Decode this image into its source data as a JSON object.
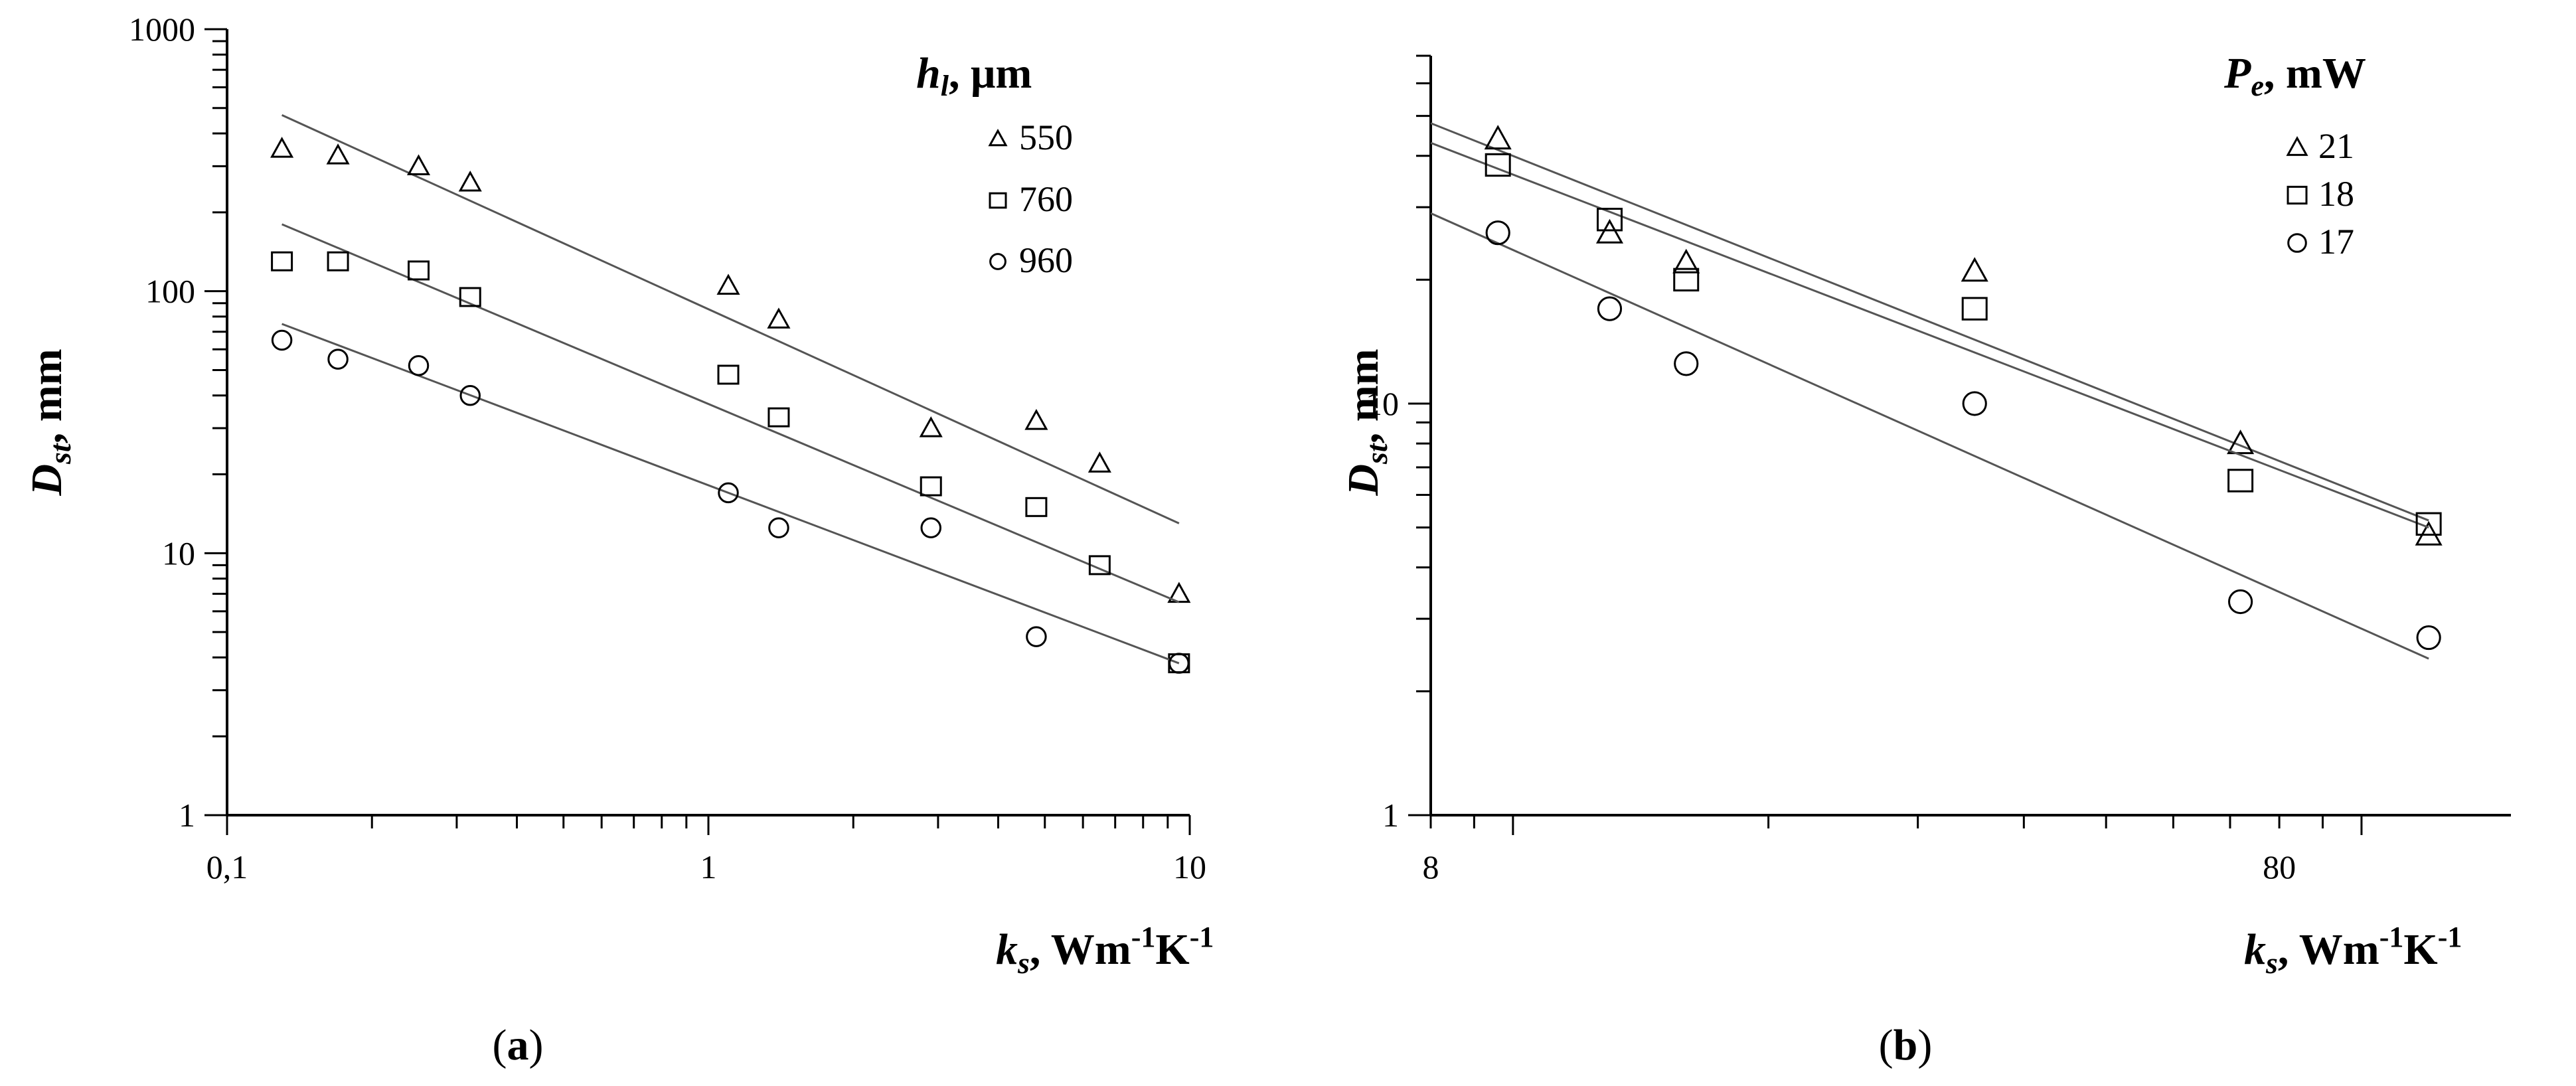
{
  "chart_data": [
    {
      "type": "scatter",
      "panel_label": "a",
      "xscale": "log",
      "yscale": "log",
      "xlim": [
        0.1,
        10
      ],
      "ylim": [
        1,
        1000
      ],
      "x_tick_labels": [
        {
          "value": 0.1,
          "label": "0,1"
        },
        {
          "value": 1,
          "label": "1"
        },
        {
          "value": 10,
          "label": "10"
        }
      ],
      "y_tick_labels": [
        {
          "value": 1,
          "label": "1"
        },
        {
          "value": 10,
          "label": "10"
        },
        {
          "value": 100,
          "label": "100"
        },
        {
          "value": 1000,
          "label": "1000"
        }
      ],
      "xlabel": {
        "main": "k",
        "sub": "s",
        "rest": ", Wm",
        "sup1": "-1",
        "mid": "K",
        "sup2": "-1"
      },
      "ylabel": {
        "main": "D",
        "sub": "st",
        "rest": ", mm"
      },
      "legend": {
        "title": {
          "main": "h",
          "sub": "l",
          "rest": ", μm"
        },
        "placement": "top-right"
      },
      "series": [
        {
          "name": "550",
          "marker": "triangle",
          "x": [
            0.13,
            0.17,
            0.25,
            0.32,
            1.1,
            1.4,
            2.9,
            4.8,
            6.5,
            9.5
          ],
          "y": [
            350,
            330,
            300,
            260,
            105,
            78,
            30,
            32,
            22,
            7
          ],
          "fit_x": [
            0.13,
            9.5
          ],
          "fit_y": [
            470,
            13
          ]
        },
        {
          "name": "760",
          "marker": "square",
          "x": [
            0.13,
            0.17,
            0.25,
            0.32,
            1.1,
            1.4,
            2.9,
            4.8,
            6.5,
            9.5
          ],
          "y": [
            130,
            130,
            120,
            95,
            48,
            33,
            18,
            15,
            9,
            3.8
          ],
          "fit_x": [
            0.13,
            9.5
          ],
          "fit_y": [
            180,
            6.5
          ]
        },
        {
          "name": "960",
          "marker": "circle",
          "x": [
            0.13,
            0.17,
            0.25,
            0.32,
            1.1,
            1.4,
            2.9,
            4.8,
            9.5
          ],
          "y": [
            65,
            55,
            52,
            40,
            17,
            12.5,
            12.5,
            4.8,
            3.8
          ],
          "fit_x": [
            0.13,
            9.5
          ],
          "fit_y": [
            75,
            3.8
          ]
        }
      ]
    },
    {
      "type": "scatter",
      "panel_label": "b",
      "xscale": "log",
      "yscale": "log",
      "xlim": [
        8,
        150
      ],
      "ylim": [
        1,
        70
      ],
      "x_tick_labels": [
        {
          "value": 8,
          "label": "8"
        },
        {
          "value": 80,
          "label": "80"
        }
      ],
      "y_tick_labels": [
        {
          "value": 1,
          "label": "1"
        },
        {
          "value": 10,
          "label": "10"
        }
      ],
      "xlabel": {
        "main": "k",
        "sub": "s",
        "rest": ", Wm",
        "sup1": "-1",
        "mid": "K",
        "sup2": "-1"
      },
      "ylabel": {
        "main": "D",
        "sub": "st",
        "rest": ", mm"
      },
      "legend": {
        "title": {
          "main": "P",
          "sub": "e",
          "rest": ", mW"
        },
        "placement": "top-right"
      },
      "series": [
        {
          "name": "21",
          "marker": "triangle",
          "x": [
            9.6,
            13,
            16,
            35,
            72,
            120
          ],
          "y": [
            44,
            26,
            22,
            21,
            8,
            4.8
          ],
          "fit_x": [
            8,
            120
          ],
          "fit_y": [
            48,
            5.2
          ]
        },
        {
          "name": "18",
          "marker": "square",
          "x": [
            9.6,
            13,
            16,
            35,
            72,
            120
          ],
          "y": [
            38,
            28,
            20,
            17,
            6.5,
            5.1
          ],
          "fit_x": [
            8,
            120
          ],
          "fit_y": [
            43,
            5
          ]
        },
        {
          "name": "17",
          "marker": "circle",
          "x": [
            9.6,
            13,
            16,
            35,
            72,
            120
          ],
          "y": [
            26,
            17,
            12.5,
            10,
            3.3,
            2.7
          ],
          "fit_x": [
            8,
            120
          ],
          "fit_y": [
            29,
            2.4
          ]
        }
      ]
    }
  ]
}
